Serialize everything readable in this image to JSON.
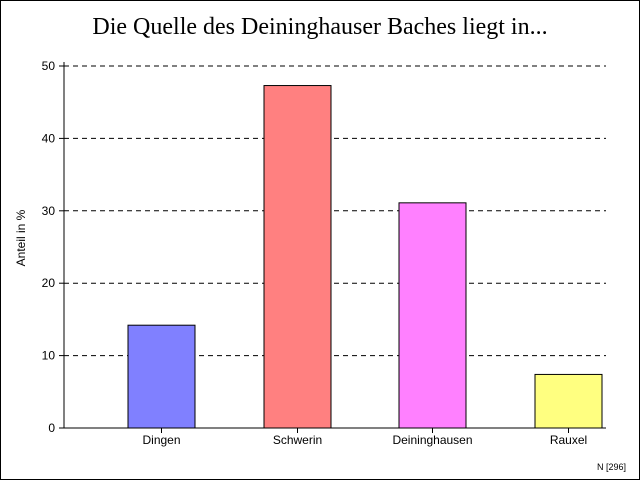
{
  "chart_data": {
    "type": "bar",
    "title": "Die Quelle des Deininghauser Baches liegt in...",
    "ylabel": "Anteil in %",
    "xlabel": "",
    "categories": [
      "Dingen",
      "Schwerin",
      "Deininghausen",
      "Rauxel"
    ],
    "values": [
      14.2,
      47.3,
      31.1,
      7.4
    ],
    "colors": [
      "#8080ff",
      "#ff8080",
      "#ff80ff",
      "#ffff80"
    ],
    "ylim": [
      0,
      50
    ],
    "yticks": [
      0,
      10,
      20,
      30,
      40,
      50
    ],
    "grid": "dashed horizontal",
    "footnote": "N [296]"
  }
}
